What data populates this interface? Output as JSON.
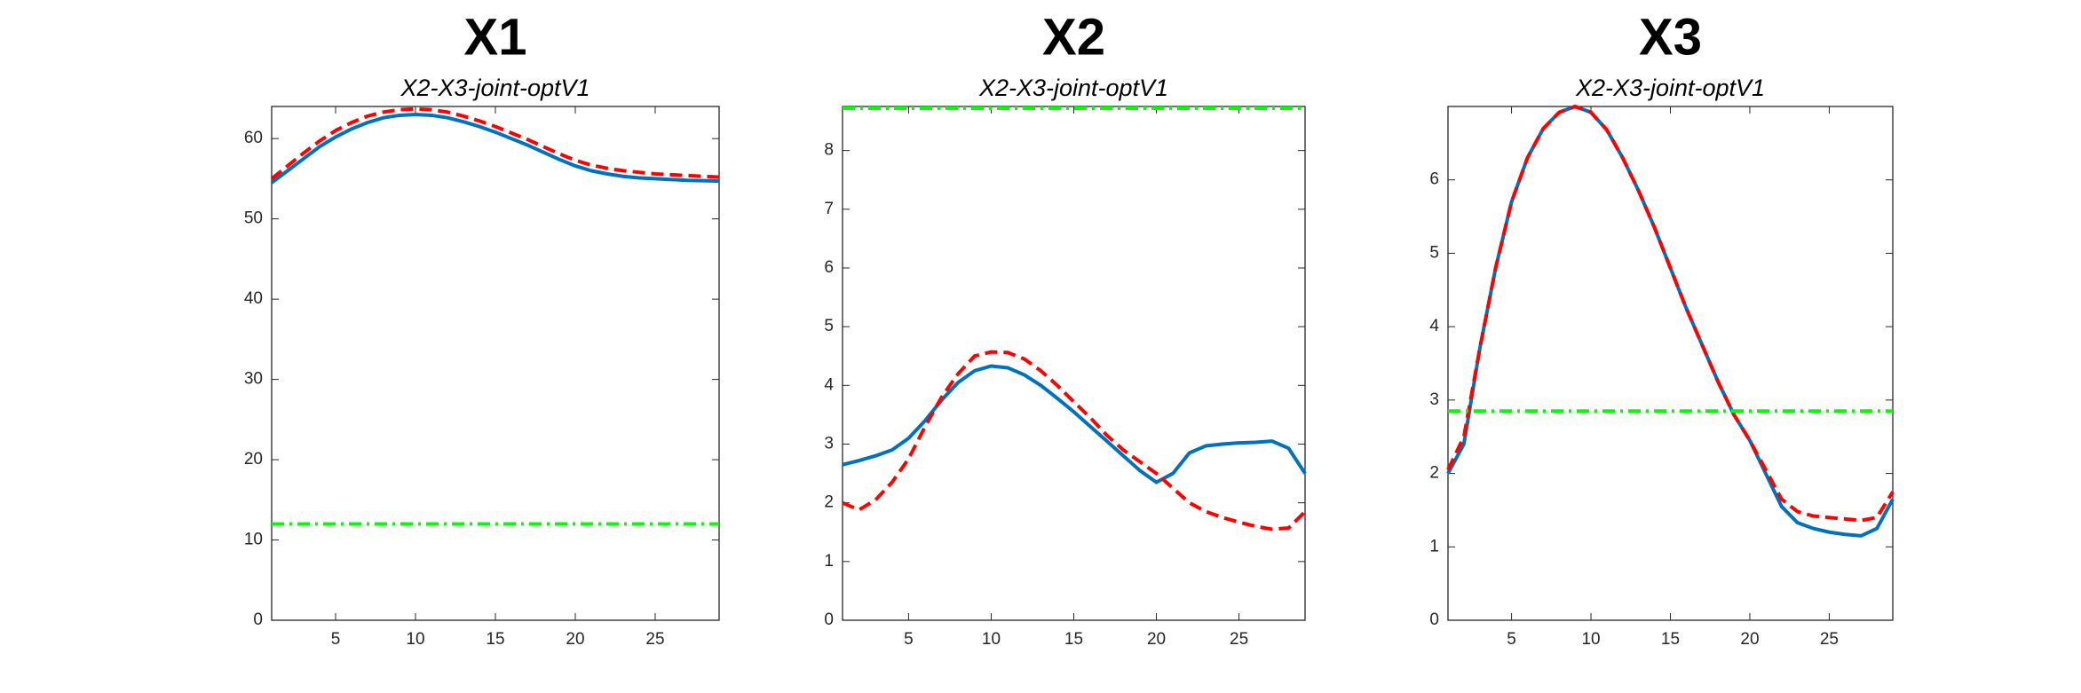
{
  "chart_data": [
    {
      "type": "line",
      "title": "X1",
      "subtitle": "X2-X3-joint-optV1",
      "x": [
        1,
        2,
        3,
        4,
        5,
        6,
        7,
        8,
        9,
        10,
        11,
        12,
        13,
        14,
        15,
        16,
        17,
        18,
        19,
        20,
        21,
        22,
        23,
        24,
        25,
        26,
        27,
        28,
        29
      ],
      "xlim": [
        1,
        29
      ],
      "xticks": [
        5,
        10,
        15,
        20,
        25
      ],
      "ylim": [
        0,
        64
      ],
      "yticks": [
        0,
        10,
        20,
        30,
        40,
        50,
        60
      ],
      "series": [
        {
          "color": "#0072bd",
          "style": "solid",
          "values": [
            54.5,
            56,
            57.5,
            59,
            60.2,
            61.2,
            62,
            62.6,
            62.9,
            63,
            62.9,
            62.6,
            62.1,
            61.5,
            60.8,
            60,
            59.2,
            58.3,
            57.4,
            56.6,
            56,
            55.6,
            55.3,
            55.1,
            55,
            54.9,
            54.8,
            54.75,
            54.7
          ]
        },
        {
          "color": "#ff0000",
          "style": "dashed",
          "values": [
            55,
            56.6,
            58.2,
            59.7,
            61,
            62,
            62.8,
            63.3,
            63.6,
            63.7,
            63.6,
            63.3,
            62.8,
            62.2,
            61.5,
            60.7,
            59.9,
            59,
            58.1,
            57.3,
            56.7,
            56.3,
            56,
            55.8,
            55.6,
            55.5,
            55.4,
            55.3,
            55.2
          ]
        },
        {
          "color": "#00ff00",
          "style": "dashdot",
          "values": [
            12,
            12,
            12,
            12,
            12,
            12,
            12,
            12,
            12,
            12,
            12,
            12,
            12,
            12,
            12,
            12,
            12,
            12,
            12,
            12,
            12,
            12,
            12,
            12,
            12,
            12,
            12,
            12,
            12
          ]
        }
      ]
    },
    {
      "type": "line",
      "title": "X2",
      "subtitle": "X2-X3-joint-optV1",
      "x": [
        1,
        2,
        3,
        4,
        5,
        6,
        7,
        8,
        9,
        10,
        11,
        12,
        13,
        14,
        15,
        16,
        17,
        18,
        19,
        20,
        21,
        22,
        23,
        24,
        25,
        26,
        27,
        28,
        29
      ],
      "xlim": [
        1,
        29
      ],
      "xticks": [
        5,
        10,
        15,
        20,
        25
      ],
      "ylim": [
        0,
        8.75
      ],
      "yticks": [
        0,
        1,
        2,
        3,
        4,
        5,
        6,
        7,
        8
      ],
      "series": [
        {
          "color": "#0072bd",
          "style": "solid",
          "values": [
            2.65,
            2.72,
            2.8,
            2.9,
            3.1,
            3.4,
            3.75,
            4.05,
            4.25,
            4.33,
            4.3,
            4.18,
            4.0,
            3.78,
            3.55,
            3.3,
            3.05,
            2.8,
            2.55,
            2.35,
            2.5,
            2.85,
            2.97,
            3.0,
            3.02,
            3.03,
            3.05,
            2.93,
            2.5
          ]
        },
        {
          "color": "#ff0000",
          "style": "dashed",
          "values": [
            2.0,
            1.88,
            2.05,
            2.35,
            2.75,
            3.3,
            3.8,
            4.2,
            4.5,
            4.57,
            4.56,
            4.45,
            4.25,
            4.0,
            3.72,
            3.45,
            3.15,
            2.9,
            2.7,
            2.5,
            2.25,
            2.0,
            1.85,
            1.75,
            1.67,
            1.6,
            1.55,
            1.57,
            1.85
          ]
        },
        {
          "color": "#00ff00",
          "style": "dashdot",
          "values": [
            8.72,
            8.72,
            8.72,
            8.72,
            8.72,
            8.72,
            8.72,
            8.72,
            8.72,
            8.72,
            8.72,
            8.72,
            8.72,
            8.72,
            8.72,
            8.72,
            8.72,
            8.72,
            8.72,
            8.72,
            8.72,
            8.72,
            8.72,
            8.72,
            8.72,
            8.72,
            8.72,
            8.72,
            8.72
          ]
        }
      ]
    },
    {
      "type": "line",
      "title": "X3",
      "subtitle": "X2-X3-joint-optV1",
      "x": [
        1,
        2,
        3,
        4,
        5,
        6,
        7,
        8,
        9,
        10,
        11,
        12,
        13,
        14,
        15,
        16,
        17,
        18,
        19,
        20,
        21,
        22,
        23,
        24,
        25,
        26,
        27,
        28,
        29
      ],
      "xlim": [
        1,
        29
      ],
      "xticks": [
        5,
        10,
        15,
        20,
        25
      ],
      "ylim": [
        0,
        7
      ],
      "yticks": [
        0,
        1,
        2,
        3,
        4,
        5,
        6
      ],
      "series": [
        {
          "color": "#0072bd",
          "style": "solid",
          "values": [
            2.0,
            2.4,
            3.7,
            4.8,
            5.7,
            6.3,
            6.7,
            6.92,
            7.0,
            6.92,
            6.68,
            6.3,
            5.85,
            5.35,
            4.8,
            4.25,
            3.75,
            3.25,
            2.8,
            2.45,
            2.0,
            1.55,
            1.33,
            1.25,
            1.2,
            1.17,
            1.15,
            1.25,
            1.65
          ]
        },
        {
          "color": "#ff0000",
          "style": "dashed",
          "values": [
            2.05,
            2.5,
            3.7,
            4.8,
            5.7,
            6.3,
            6.7,
            6.92,
            7.0,
            6.92,
            6.68,
            6.3,
            5.85,
            5.35,
            4.8,
            4.25,
            3.75,
            3.25,
            2.8,
            2.45,
            2.05,
            1.65,
            1.48,
            1.42,
            1.4,
            1.38,
            1.36,
            1.4,
            1.75
          ]
        },
        {
          "color": "#00ff00",
          "style": "dashdot",
          "values": [
            2.85,
            2.85,
            2.85,
            2.85,
            2.85,
            2.85,
            2.85,
            2.85,
            2.85,
            2.85,
            2.85,
            2.85,
            2.85,
            2.85,
            2.85,
            2.85,
            2.85,
            2.85,
            2.85,
            2.85,
            2.85,
            2.85,
            2.85,
            2.85,
            2.85,
            2.85,
            2.85,
            2.85,
            2.85
          ]
        }
      ]
    }
  ]
}
